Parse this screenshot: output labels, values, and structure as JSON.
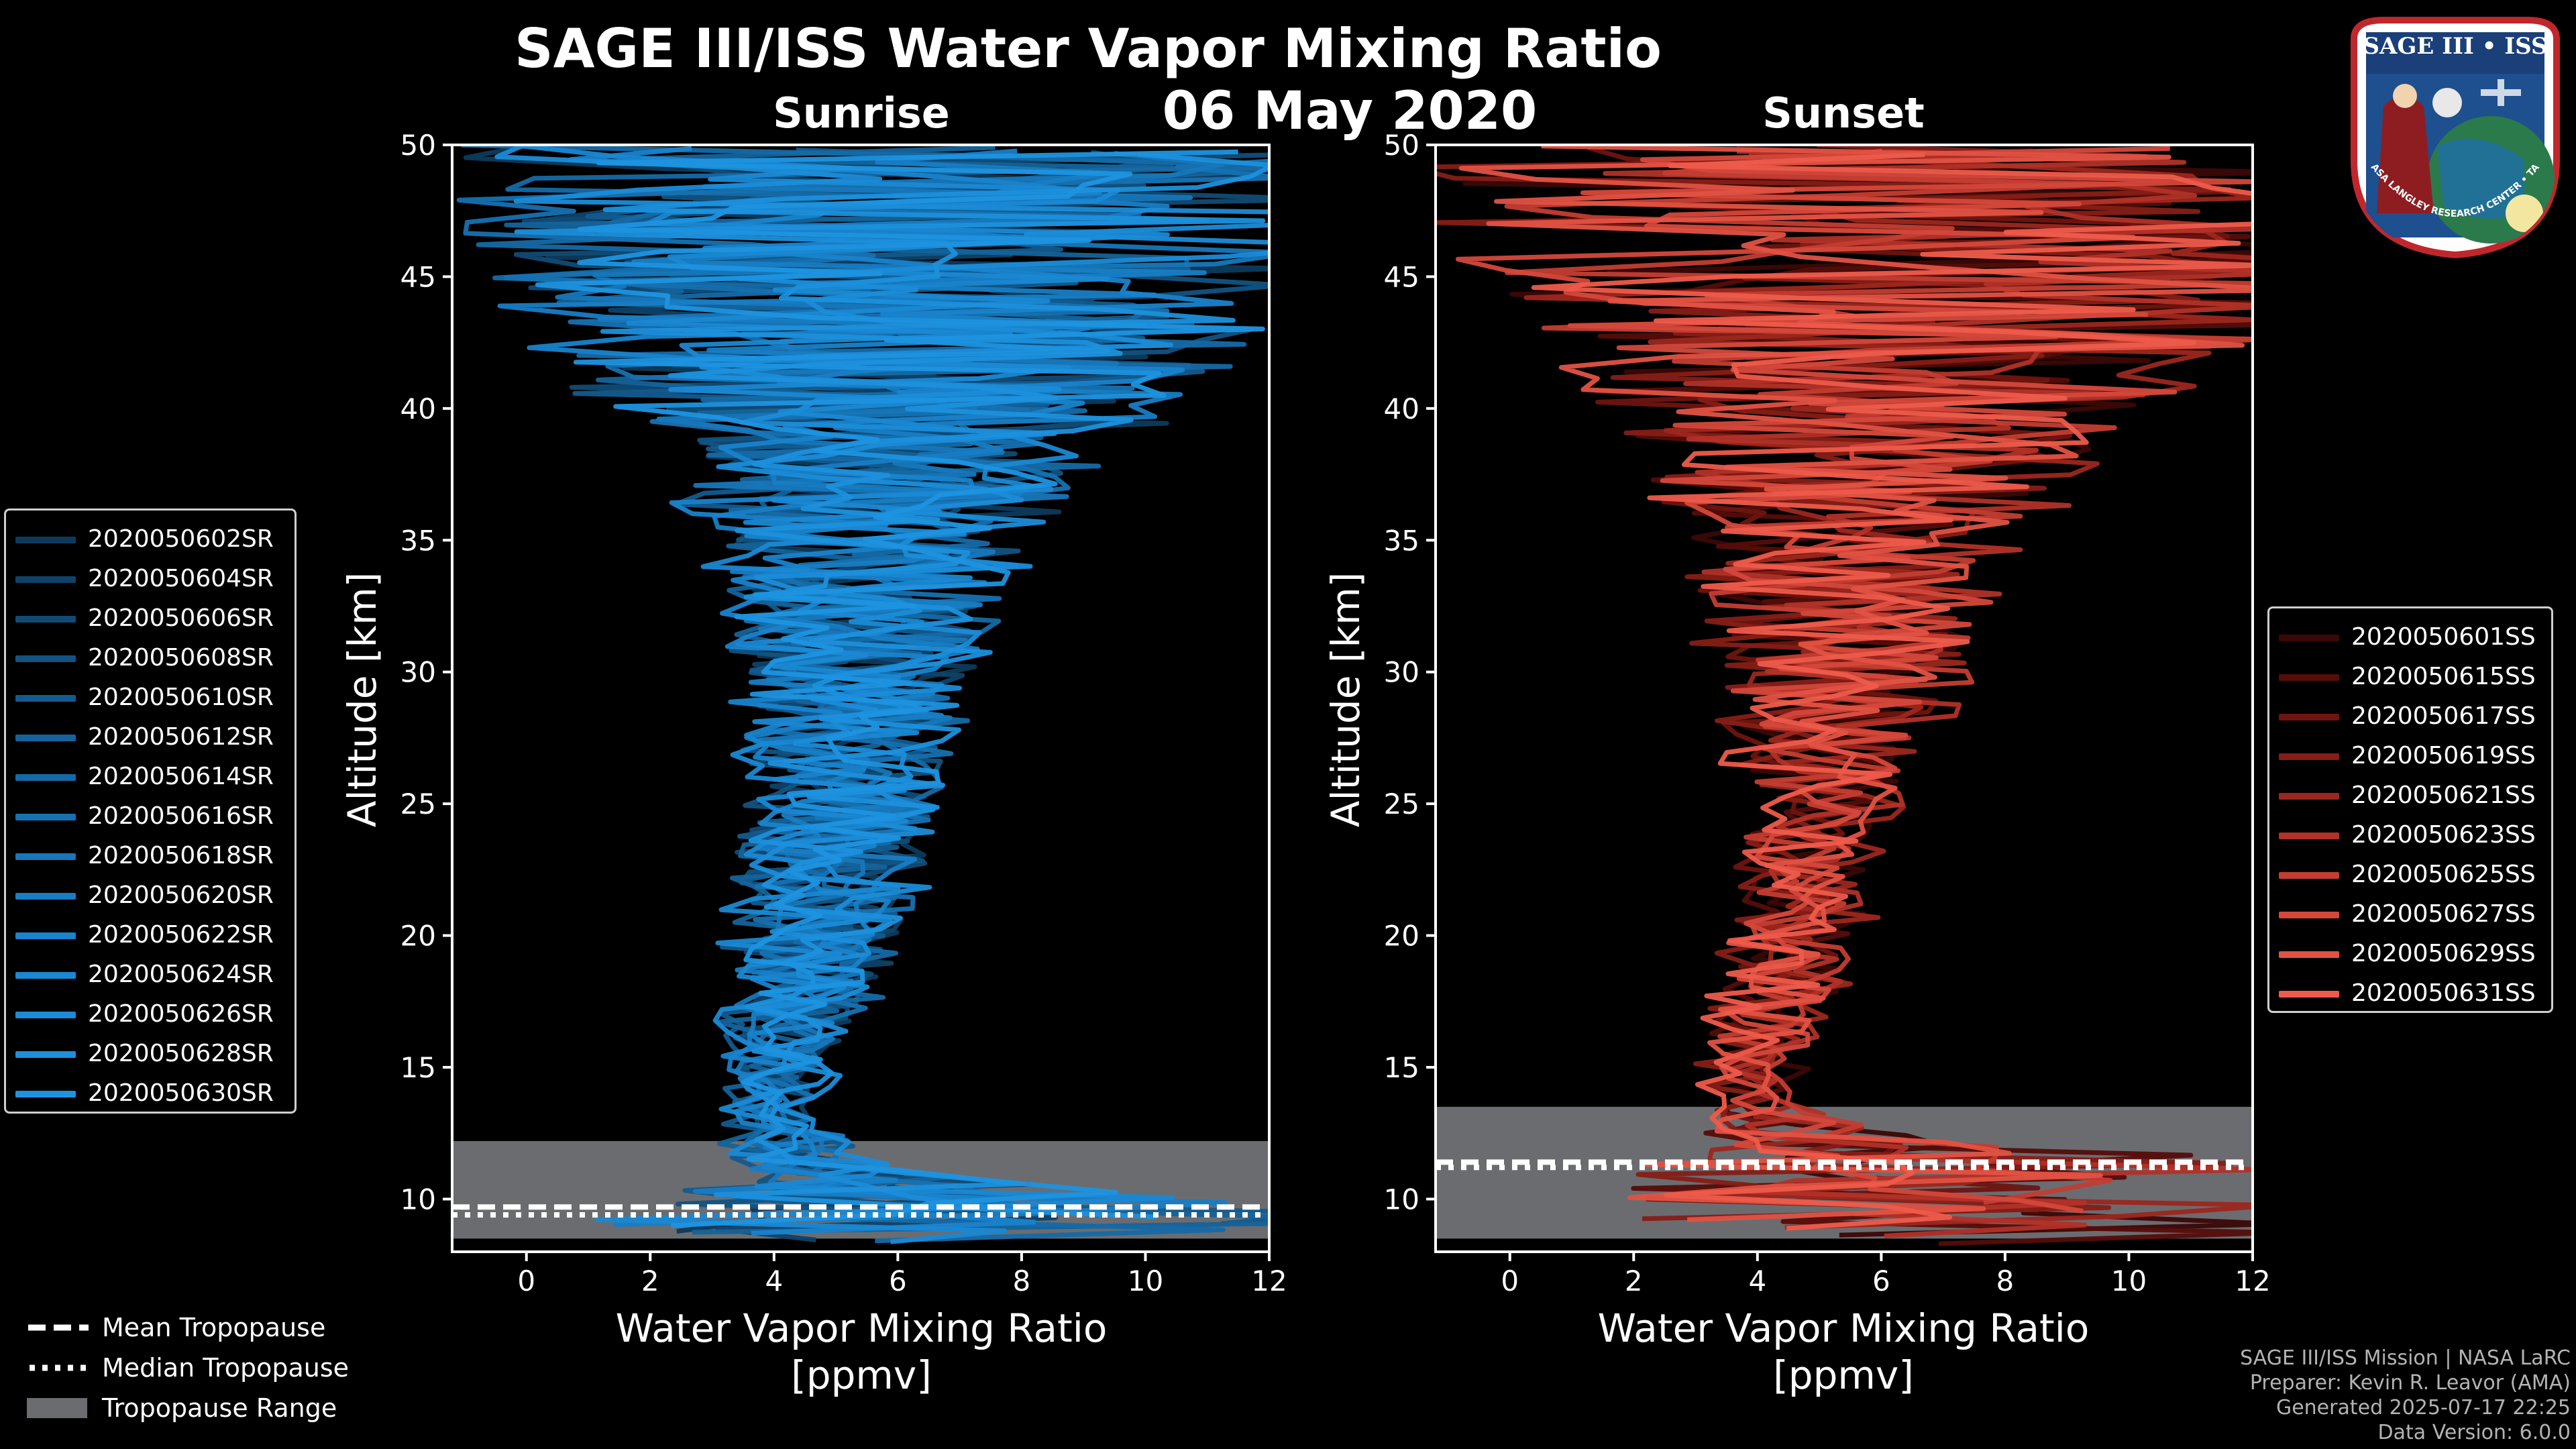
{
  "figure": {
    "title": "SAGE III/ISS Water Vapor Mixing Ratio",
    "date": "06 May 2020",
    "colors": {
      "background": "#000000",
      "sunrise_line": "#1b8fd6",
      "sunset_line": "#ee5b4b",
      "tropopause_fill": "#6b6c70"
    }
  },
  "chart_data": [
    {
      "type": "line",
      "panel": "Sunrise",
      "title": "Sunrise",
      "xlabel": "Water Vapor Mixing Ratio [ppmv]",
      "xlabel_lines": [
        "Water Vapor Mixing Ratio",
        "[ppmv]"
      ],
      "ylabel": "Altitude [km]",
      "xlim": [
        -1.2,
        12
      ],
      "ylim": [
        8,
        50
      ],
      "xticks": [
        0,
        2,
        4,
        6,
        8,
        10,
        12
      ],
      "yticks": [
        10,
        15,
        20,
        25,
        30,
        35,
        40,
        45,
        50
      ],
      "tropopause": {
        "range_km": [
          8.5,
          12.2
        ],
        "mean_km": 9.7,
        "median_km": 9.4
      },
      "profile_envelope": {
        "altitude_km": [
          9,
          11,
          12,
          13,
          14,
          15,
          17,
          20,
          23,
          25,
          28,
          30,
          33,
          35,
          38,
          40,
          42,
          44,
          46,
          48,
          50
        ],
        "center_ppmv": [
          6.5,
          4.5,
          4.0,
          3.9,
          4.0,
          4.1,
          4.3,
          4.7,
          4.9,
          5.1,
          5.2,
          5.3,
          5.4,
          5.5,
          5.6,
          5.7,
          5.8,
          6.0,
          6.0,
          5.6,
          5.7
        ],
        "spread_ppmv": [
          5.5,
          1.0,
          0.8,
          0.6,
          0.6,
          0.8,
          1.0,
          1.4,
          1.6,
          1.5,
          1.7,
          1.9,
          2.3,
          2.6,
          3.6,
          4.8,
          5.6,
          6.5,
          7.2,
          7.5,
          7.6
        ]
      },
      "series": [
        {
          "name": "2020050602SR",
          "color": "#0d3a5c",
          "seed": 11
        },
        {
          "name": "2020050604SR",
          "color": "#0f4268",
          "seed": 12
        },
        {
          "name": "2020050606SR",
          "color": "#114b75",
          "seed": 13
        },
        {
          "name": "2020050608SR",
          "color": "#125382",
          "seed": 14
        },
        {
          "name": "2020050610SR",
          "color": "#135b8e",
          "seed": 15
        },
        {
          "name": "2020050612SR",
          "color": "#14639a",
          "seed": 16
        },
        {
          "name": "2020050614SR",
          "color": "#156aa6",
          "seed": 17
        },
        {
          "name": "2020050616SR",
          "color": "#1671b1",
          "seed": 18
        },
        {
          "name": "2020050618SR",
          "color": "#1777bb",
          "seed": 19
        },
        {
          "name": "2020050620SR",
          "color": "#187dc4",
          "seed": 20
        },
        {
          "name": "2020050622SR",
          "color": "#1983cc",
          "seed": 21
        },
        {
          "name": "2020050624SR",
          "color": "#1a88d3",
          "seed": 22
        },
        {
          "name": "2020050626SR",
          "color": "#1b8cd8",
          "seed": 23
        },
        {
          "name": "2020050628SR",
          "color": "#1c90dc",
          "seed": 24
        },
        {
          "name": "2020050630SR",
          "color": "#1d93e0",
          "seed": 25
        }
      ]
    },
    {
      "type": "line",
      "panel": "Sunset",
      "title": "Sunset",
      "xlabel": "Water Vapor Mixing Ratio [ppmv]",
      "xlabel_lines": [
        "Water Vapor Mixing Ratio",
        "[ppmv]"
      ],
      "ylabel": "Altitude [km]",
      "xlim": [
        -1.2,
        12
      ],
      "ylim": [
        8,
        50
      ],
      "xticks": [
        0,
        2,
        4,
        6,
        8,
        10,
        12
      ],
      "yticks": [
        10,
        15,
        20,
        25,
        30,
        35,
        40,
        45,
        50
      ],
      "tropopause": {
        "range_km": [
          8.5,
          13.5
        ],
        "mean_km": 11.4,
        "median_km": 11.2
      },
      "profile_envelope": {
        "altitude_km": [
          9,
          11,
          12,
          13,
          14,
          15,
          17,
          20,
          23,
          25,
          28,
          30,
          33,
          35,
          38,
          40,
          42,
          44,
          46,
          48,
          50
        ],
        "center_ppmv": [
          6.0,
          6.0,
          5.5,
          4.2,
          3.9,
          4.0,
          4.2,
          4.6,
          4.8,
          5.0,
          5.2,
          5.4,
          5.5,
          5.6,
          5.8,
          6.0,
          6.3,
          6.5,
          6.5,
          6.3,
          6.0
        ],
        "spread_ppmv": [
          4.0,
          4.0,
          3.0,
          0.8,
          0.6,
          0.8,
          0.9,
          1.0,
          1.1,
          1.3,
          1.7,
          2.1,
          2.5,
          2.8,
          3.6,
          4.5,
          5.5,
          6.5,
          7.5,
          7.5,
          7.5
        ]
      },
      "series": [
        {
          "name": "2020050601SS",
          "color": "#3a0806",
          "seed": 31
        },
        {
          "name": "2020050615SS",
          "color": "#550d0a",
          "seed": 32
        },
        {
          "name": "2020050617SS",
          "color": "#6e140f",
          "seed": 33
        },
        {
          "name": "2020050619SS",
          "color": "#861d16",
          "seed": 34
        },
        {
          "name": "2020050621SS",
          "color": "#9c271e",
          "seed": 35
        },
        {
          "name": "2020050623SS",
          "color": "#b13228",
          "seed": 36
        },
        {
          "name": "2020050625SS",
          "color": "#c33d31",
          "seed": 37
        },
        {
          "name": "2020050627SS",
          "color": "#d4483b",
          "seed": 38
        },
        {
          "name": "2020050629SS",
          "color": "#e15243",
          "seed": 39
        },
        {
          "name": "2020050631SS",
          "color": "#ee5b4b",
          "seed": 40
        }
      ]
    }
  ],
  "tropopause_legend": [
    {
      "label": "Mean Tropopause",
      "style": "dashed",
      "color": "#ffffff"
    },
    {
      "label": "Median Tropopause",
      "style": "dotted",
      "color": "#ffffff"
    },
    {
      "label": "Tropopause Range",
      "style": "patch",
      "color": "#6b6c70"
    }
  ],
  "footer": {
    "line1": "SAGE III/ISS Mission | NASA LaRC",
    "line2": "Preparer: Kevin R. Leavor (AMA)",
    "line3": "Generated 2025-07-17 22:25",
    "line4": "Data Version: 6.0.0"
  },
  "logo": {
    "title": "SAGE III • ISS",
    "ring_text": "BALL • NASA LANGLEY RESEARCH CENTER • TAS-I • ESA",
    "colors": {
      "ring": "#ffffff",
      "border": "#c0272d",
      "field": "#1e4f8f"
    }
  }
}
